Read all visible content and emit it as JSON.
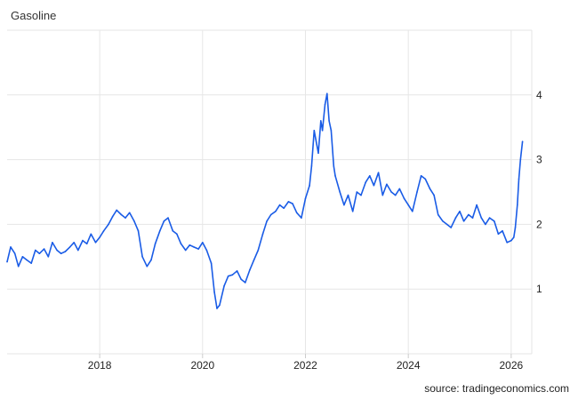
{
  "chart_data": {
    "type": "line",
    "title": "Gasoline",
    "source": "source: tradingeconomics.com",
    "xlabel": "",
    "ylabel": "",
    "xlim": [
      2016.2,
      2026.4
    ],
    "ylim": [
      0,
      5
    ],
    "x_ticks": [
      2018,
      2020,
      2022,
      2024,
      2026
    ],
    "x_tick_labels": [
      "2018",
      "2020",
      "2022",
      "2024",
      "2026"
    ],
    "y_ticks": [
      1,
      2,
      3,
      4
    ],
    "y_tick_labels": [
      "1",
      "2",
      "3",
      "4"
    ],
    "grid": true,
    "legend": "none",
    "colors": {
      "line": "#1a5ce6",
      "grid": "#e6e6e6"
    },
    "series": [
      {
        "x": [
          2016.2,
          2016.27,
          2016.35,
          2016.42,
          2016.5,
          2016.58,
          2016.67,
          2016.75,
          2016.83,
          2016.92,
          2017.0,
          2017.08,
          2017.17,
          2017.25,
          2017.33,
          2017.42,
          2017.5,
          2017.58,
          2017.67,
          2017.75,
          2017.83,
          2017.92,
          2018.0,
          2018.08,
          2018.17,
          2018.25,
          2018.33,
          2018.42,
          2018.5,
          2018.58,
          2018.67,
          2018.75,
          2018.83,
          2018.92,
          2019.0,
          2019.08,
          2019.17,
          2019.25,
          2019.33,
          2019.42,
          2019.5,
          2019.58,
          2019.67,
          2019.75,
          2019.83,
          2019.92,
          2020.0,
          2020.08,
          2020.17,
          2020.23,
          2020.28,
          2020.33,
          2020.42,
          2020.5,
          2020.58,
          2020.67,
          2020.75,
          2020.83,
          2020.92,
          2021.0,
          2021.08,
          2021.17,
          2021.25,
          2021.33,
          2021.42,
          2021.5,
          2021.58,
          2021.67,
          2021.75,
          2021.83,
          2021.92,
          2022.0,
          2022.08,
          2022.12,
          2022.17,
          2022.25,
          2022.3,
          2022.33,
          2022.38,
          2022.42,
          2022.46,
          2022.5,
          2022.55,
          2022.58,
          2022.67,
          2022.75,
          2022.83,
          2022.92,
          2023.0,
          2023.08,
          2023.17,
          2023.25,
          2023.33,
          2023.42,
          2023.5,
          2023.58,
          2023.67,
          2023.75,
          2023.83,
          2023.92,
          2024.0,
          2024.08,
          2024.17,
          2024.25,
          2024.33,
          2024.42,
          2024.5,
          2024.58,
          2024.67,
          2024.75,
          2024.83,
          2024.92,
          2025.0,
          2025.08,
          2025.17,
          2025.25,
          2025.33,
          2025.42,
          2025.5,
          2025.58,
          2025.67,
          2025.75,
          2025.83,
          2025.92,
          2026.0,
          2026.05,
          2026.08,
          2026.12,
          2026.15,
          2026.18,
          2026.22
        ],
        "y": [
          1.42,
          1.65,
          1.55,
          1.35,
          1.5,
          1.45,
          1.4,
          1.6,
          1.55,
          1.62,
          1.5,
          1.72,
          1.6,
          1.55,
          1.58,
          1.65,
          1.72,
          1.6,
          1.75,
          1.7,
          1.85,
          1.72,
          1.8,
          1.9,
          2.0,
          2.12,
          2.22,
          2.15,
          2.1,
          2.18,
          2.05,
          1.9,
          1.5,
          1.35,
          1.45,
          1.7,
          1.9,
          2.05,
          2.1,
          1.9,
          1.85,
          1.7,
          1.6,
          1.68,
          1.65,
          1.62,
          1.72,
          1.6,
          1.4,
          0.95,
          0.7,
          0.75,
          1.05,
          1.2,
          1.22,
          1.28,
          1.15,
          1.1,
          1.3,
          1.45,
          1.6,
          1.85,
          2.05,
          2.15,
          2.2,
          2.3,
          2.25,
          2.35,
          2.32,
          2.18,
          2.1,
          2.4,
          2.6,
          2.9,
          3.45,
          3.1,
          3.6,
          3.45,
          3.85,
          4.02,
          3.6,
          3.45,
          2.9,
          2.75,
          2.5,
          2.3,
          2.45,
          2.2,
          2.5,
          2.45,
          2.65,
          2.75,
          2.6,
          2.8,
          2.45,
          2.62,
          2.5,
          2.45,
          2.55,
          2.4,
          2.3,
          2.2,
          2.5,
          2.75,
          2.7,
          2.55,
          2.45,
          2.15,
          2.05,
          2.0,
          1.95,
          2.1,
          2.2,
          2.05,
          2.15,
          2.1,
          2.3,
          2.1,
          2.0,
          2.1,
          2.05,
          1.85,
          1.9,
          1.72,
          1.75,
          1.8,
          1.95,
          2.3,
          2.7,
          3.0,
          3.28
        ]
      }
    ]
  }
}
